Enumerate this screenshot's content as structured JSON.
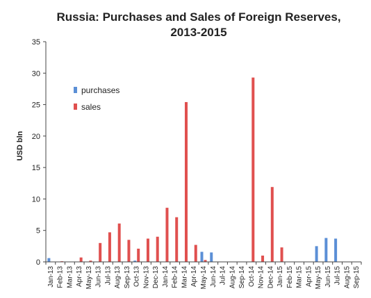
{
  "chart_data": {
    "type": "bar",
    "title_lines": [
      "Russia: Purchases and Sales of Foreign Reserves,",
      "2013-2015"
    ],
    "xlabel": "",
    "ylabel": "USD bln",
    "ylim": [
      0,
      35
    ],
    "yticks": [
      0,
      5,
      10,
      15,
      20,
      25,
      30,
      35
    ],
    "grid": false,
    "legend_position": "top-left inside plot",
    "categories": [
      "Jan-13",
      "Feb-13",
      "Mar-13",
      "Apr-13",
      "May-13",
      "Jun-13",
      "Jul-13",
      "Aug-13",
      "Sep-13",
      "Oct-13",
      "Nov-13",
      "Dec-13",
      "Jan-14",
      "Feb-14",
      "Mar-14",
      "Apr-14",
      "May-14",
      "Jun-14",
      "Jul-14",
      "Aug-14",
      "Sep-14",
      "Oct-14",
      "Nov-14",
      "Dec-14",
      "Jan-15",
      "Feb-15",
      "Mar-15",
      "Apr-15",
      "May-15",
      "Jun-15",
      "Jul-15",
      "Aug-15",
      "Sep-15"
    ],
    "series": [
      {
        "name": "purchases",
        "color": "#5b8fd6",
        "values": [
          0.6,
          0,
          0,
          0,
          0,
          0,
          0,
          0,
          0,
          0.2,
          0,
          0,
          0,
          0,
          0,
          0,
          1.6,
          1.5,
          0,
          0,
          0,
          0,
          0,
          0,
          0,
          0,
          0,
          0,
          2.5,
          3.8,
          3.7,
          0,
          0
        ]
      },
      {
        "name": "sales",
        "color": "#e0504f",
        "values": [
          0,
          0.1,
          0,
          0.7,
          0.2,
          3.0,
          4.7,
          6.1,
          3.5,
          2.1,
          3.7,
          4.0,
          8.6,
          7.1,
          25.4,
          2.7,
          0.3,
          0,
          0,
          0,
          0,
          29.3,
          1.0,
          11.9,
          2.3,
          0,
          0,
          0,
          0,
          0,
          0,
          0,
          0
        ]
      }
    ]
  }
}
